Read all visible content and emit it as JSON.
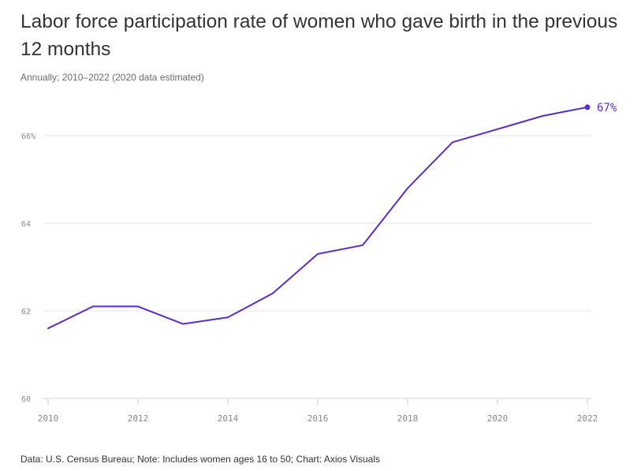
{
  "header": {
    "title": "Labor force participation rate of women who gave birth in the previous 12 months",
    "subtitle": "Annually; 2010–2022 (2020 data estimated)"
  },
  "footer": {
    "source": "Data: U.S. Census Bureau; Note: Includes women ages 16 to 50; Chart: Axios Visuals"
  },
  "colors": {
    "line": "#5b2bd1",
    "grid": "#e6e6e6",
    "tick": "#8a8a8a"
  },
  "chart_data": {
    "type": "line",
    "title": "Labor force participation rate of women who gave birth in the previous 12 months",
    "subtitle": "Annually; 2010–2022 (2020 data estimated)",
    "xlabel": "",
    "ylabel": "",
    "xlim": [
      2010,
      2022
    ],
    "ylim": [
      60,
      67
    ],
    "grid": "horizontal",
    "legend": "none",
    "y_ticks": [
      {
        "value": 60,
        "label": "60"
      },
      {
        "value": 62,
        "label": "62"
      },
      {
        "value": 64,
        "label": "64"
      },
      {
        "value": 66,
        "label": "66%"
      }
    ],
    "x_ticks": [
      {
        "value": 2010,
        "label": "2010"
      },
      {
        "value": 2012,
        "label": "2012"
      },
      {
        "value": 2014,
        "label": "2014"
      },
      {
        "value": 2016,
        "label": "2016"
      },
      {
        "value": 2018,
        "label": "2018"
      },
      {
        "value": 2020,
        "label": "2020"
      },
      {
        "value": 2022,
        "label": "2022"
      }
    ],
    "x": [
      2010,
      2011,
      2012,
      2013,
      2014,
      2015,
      2016,
      2017,
      2018,
      2019,
      2020,
      2021,
      2022
    ],
    "series": [
      {
        "values": [
          61.6,
          62.1,
          62.1,
          61.7,
          61.85,
          62.4,
          63.3,
          63.5,
          64.8,
          65.85,
          66.15,
          66.45,
          66.65
        ]
      }
    ],
    "end_label": "67%"
  }
}
